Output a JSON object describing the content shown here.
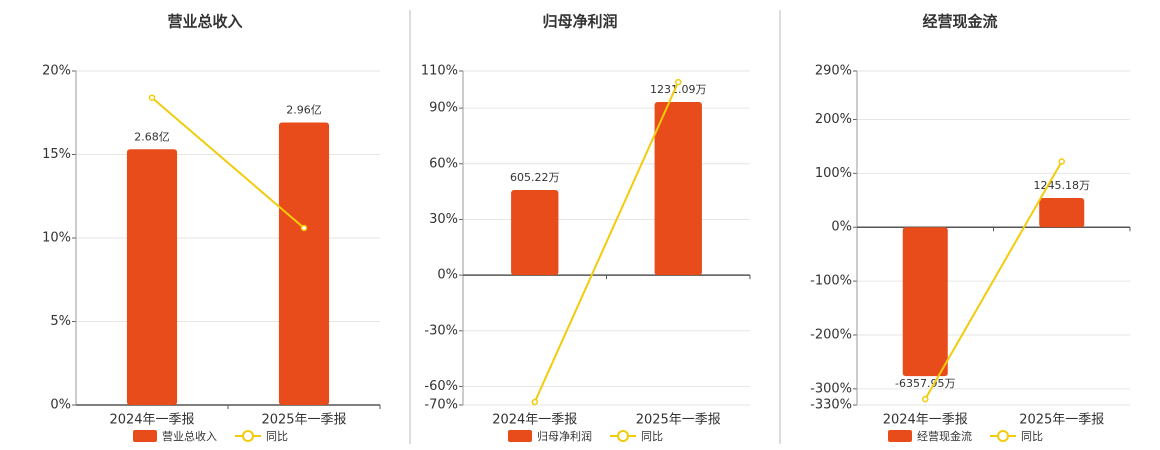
{
  "chart_data": [
    {
      "type": "bar_line",
      "title": "营业总收入",
      "categories": [
        "2024年一季报",
        "2025年一季报"
      ],
      "series": [
        {
          "name": "营业总收入",
          "color": "#e84c1b",
          "axis": "y2",
          "values": [
            2.68,
            2.96
          ],
          "value_labels": [
            "2.68亿",
            "2.96亿"
          ]
        },
        {
          "name": "同比",
          "color": "#f2cc0c",
          "values": [
            18.4,
            10.6
          ]
        }
      ],
      "ylim": [
        0,
        20
      ],
      "yticks": [
        {
          "value": 0,
          "label": "0%"
        },
        {
          "value": 5,
          "label": "5%"
        },
        {
          "value": 10,
          "label": "10%"
        },
        {
          "value": 15,
          "label": "15%"
        },
        {
          "value": 20,
          "label": "20%"
        }
      ],
      "y2lim": [
        0,
        3.5
      ],
      "grid": true
    },
    {
      "type": "bar_line",
      "title": "归母净利润",
      "categories": [
        "2024年一季报",
        "2025年一季报"
      ],
      "series": [
        {
          "name": "归母净利润",
          "color": "#e84c1b",
          "axis": "y2",
          "values": [
            605.22,
            1231.09
          ],
          "value_labels": [
            "605.22万",
            "1231.09万"
          ]
        },
        {
          "name": "同比",
          "color": "#f2cc0c",
          "values": [
            -68.4,
            104
          ]
        }
      ],
      "ylim": [
        -70,
        110
      ],
      "yticks": [
        {
          "value": -70,
          "label": "-70%"
        },
        {
          "value": -60,
          "label": "-60%"
        },
        {
          "value": -30,
          "label": "-30%"
        },
        {
          "value": 0,
          "label": "0%"
        },
        {
          "value": 30,
          "label": "30%"
        },
        {
          "value": 60,
          "label": "60%"
        },
        {
          "value": 90,
          "label": "90%"
        },
        {
          "value": 110,
          "label": "110%"
        }
      ],
      "y2lim": [
        -924,
        1452
      ],
      "grid": true
    },
    {
      "type": "bar_line",
      "title": "经营现金流",
      "categories": [
        "2024年一季报",
        "2025年一季报"
      ],
      "series": [
        {
          "name": "经营现金流",
          "color": "#e84c1b",
          "axis": "y2",
          "values": [
            -6357.95,
            1245.18
          ],
          "value_labels": [
            "-6357.95万",
            "1245.18万"
          ]
        },
        {
          "name": "同比",
          "color": "#f2cc0c",
          "values": [
            -319,
            122
          ]
        }
      ],
      "ylim": [
        -330,
        290
      ],
      "yticks": [
        {
          "value": -330,
          "label": "-330%"
        },
        {
          "value": -300,
          "label": "-300%"
        },
        {
          "value": -200,
          "label": "-200%"
        },
        {
          "value": -100,
          "label": "-100%"
        },
        {
          "value": 0,
          "label": "0%"
        },
        {
          "value": 100,
          "label": "100%"
        },
        {
          "value": 200,
          "label": "200%"
        },
        {
          "value": 290,
          "label": "290%"
        }
      ],
      "y2lim": [
        -7590,
        6670
      ],
      "grid": true
    }
  ]
}
